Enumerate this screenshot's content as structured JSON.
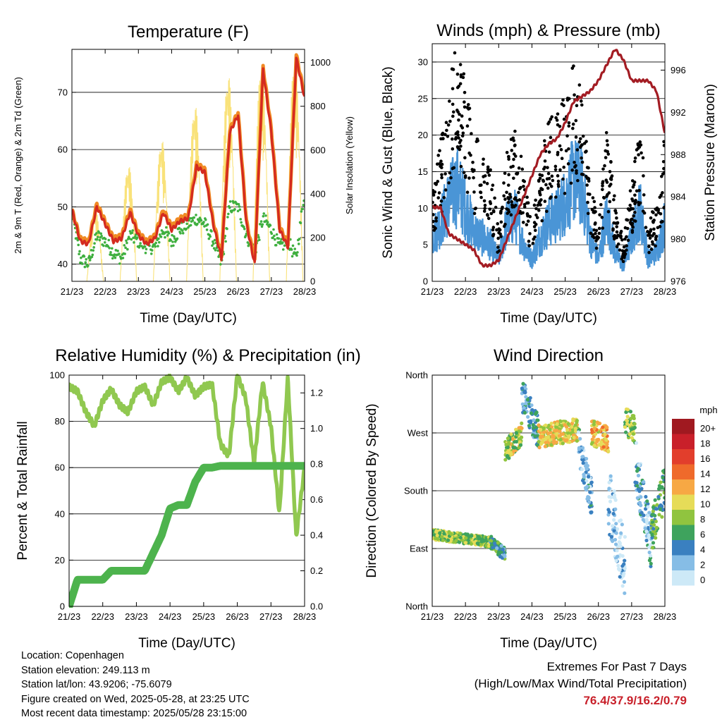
{
  "x_ticks": [
    "21/23",
    "22/23",
    "23/23",
    "24/23",
    "25/23",
    "26/23",
    "27/23",
    "28/23"
  ],
  "colors": {
    "red": "#d42a20",
    "orange": "#f08a24",
    "green": "#3faf3f",
    "yellow": "#f9e27a",
    "blue": "#4a95d6",
    "black": "#000000",
    "maroon": "#a31c23",
    "rh": "#90c850",
    "precip": "#4db34d",
    "extreme_values": "#c8202a"
  },
  "footer": {
    "location": "Location: Copenhagen",
    "elevation": "Station elevation: 249.113 m",
    "latlon": "Station lat/lon: 43.9206; -75.6079",
    "created": "Figure created on Wed, 2025-05-28, at 23:25 UTC",
    "latest": "Most recent data timestamp: 2025/05/28 23:15:00"
  },
  "extremes": {
    "line1": "Extremes For Past 7 Days",
    "line2": "(High/Low/Max Wind/Total Precipitation)",
    "values": "76.4/37.9/16.2/0.79"
  },
  "chart_data": [
    {
      "id": "temperature",
      "type": "line",
      "title": "Temperature (F)",
      "xlabel": "Time (Day/UTC)",
      "ylabel": "2m & 9m T (Red, Orange) & 2m Td (Green)",
      "ylabel_right": "Solar Insolation (Yellow)",
      "x": [
        0,
        0.25,
        0.5,
        0.75,
        1,
        1.25,
        1.5,
        1.75,
        2,
        2.25,
        2.5,
        2.75,
        3,
        3.25,
        3.5,
        3.75,
        4,
        4.25,
        4.5,
        4.75,
        5,
        5.25,
        5.5,
        5.75,
        6,
        6.25,
        6.5,
        6.75,
        7
      ],
      "ylim": [
        37,
        77.5
      ],
      "yticks": [
        40,
        50,
        60,
        70
      ],
      "y2lim": [
        0,
        1060
      ],
      "y2ticks": [
        0,
        200,
        400,
        600,
        800,
        1000
      ],
      "grid": true,
      "series": [
        {
          "name": "2m T",
          "color": "red",
          "axis": "left",
          "values": [
            49.5,
            44,
            43.5,
            50,
            47,
            44,
            44.5,
            49,
            45,
            43.5,
            44.5,
            49,
            46,
            47.5,
            48,
            57,
            56,
            47,
            41,
            63,
            66,
            47,
            40,
            74,
            63,
            46,
            43,
            76,
            69
          ]
        },
        {
          "name": "9m T",
          "color": "orange",
          "axis": "left",
          "values": [
            49.5,
            44.5,
            44,
            50.5,
            47.5,
            44.5,
            45,
            49.5,
            45.5,
            44,
            45,
            49.5,
            46.5,
            48,
            48.5,
            57.5,
            56.5,
            47.5,
            41.5,
            63.5,
            66.5,
            47.5,
            40.5,
            74.5,
            63.5,
            46.5,
            43.5,
            76.5,
            69.5
          ]
        },
        {
          "name": "2m Td",
          "color": "green",
          "axis": "left",
          "values": [
            49,
            41,
            40,
            45,
            44,
            42,
            41,
            45,
            44,
            43,
            43,
            46,
            44,
            46,
            47,
            48,
            47,
            44,
            40,
            50,
            50,
            45,
            42,
            48,
            46,
            43,
            44,
            41,
            53
          ]
        },
        {
          "name": "Solar",
          "color": "yellow",
          "axis": "right",
          "values": [
            0,
            0,
            0,
            330,
            0,
            0,
            0,
            540,
            0,
            0,
            0,
            660,
            0,
            0,
            0,
            820,
            0,
            0,
            0,
            960,
            0,
            0,
            0,
            1020,
            0,
            0,
            0,
            1040,
            0
          ]
        }
      ]
    },
    {
      "id": "winds",
      "type": "line",
      "title": "Winds (mph) & Pressure (mb)",
      "xlabel": "Time (Day/UTC)",
      "ylabel": "Sonic Wind & Gust (Blue, Black)",
      "ylabel_right": "Station Pressure (Maroon)",
      "x": [
        0,
        0.25,
        0.5,
        0.75,
        1,
        1.25,
        1.5,
        1.75,
        2,
        2.25,
        2.5,
        2.75,
        3,
        3.25,
        3.5,
        3.75,
        4,
        4.25,
        4.5,
        4.75,
        5,
        5.25,
        5.5,
        5.75,
        6,
        6.25,
        6.5,
        6.75,
        7
      ],
      "ylim": [
        0,
        32.5
      ],
      "yticks": [
        0,
        5,
        10,
        15,
        20,
        25,
        30
      ],
      "y2lim": [
        976,
        998.5
      ],
      "y2ticks": [
        976,
        980,
        984,
        988,
        992,
        996
      ],
      "grid": true,
      "series": [
        {
          "name": "Sonic Wind",
          "color": "blue",
          "axis": "left",
          "values": [
            6,
            8,
            11,
            13,
            10,
            7,
            6,
            5,
            3,
            8,
            9,
            5,
            3,
            6,
            8,
            9,
            11,
            14,
            13,
            6,
            3,
            9,
            4,
            2,
            6,
            10,
            3,
            4,
            8
          ]
        },
        {
          "name": "Gust",
          "color": "black",
          "axis": "left",
          "values": [
            9,
            14,
            19,
            25,
            20,
            15,
            13,
            12,
            5,
            13,
            16,
            11,
            6,
            12,
            16,
            17,
            19,
            22,
            20,
            11,
            5,
            16,
            8,
            4,
            10,
            16,
            6,
            8,
            15
          ]
        },
        {
          "name": "Pressure",
          "color": "maroon",
          "axis": "right",
          "values": [
            983,
            983,
            980.5,
            980,
            979.5,
            979,
            977.5,
            977.5,
            978,
            980,
            982,
            984,
            986,
            988,
            989,
            989.5,
            991,
            993,
            993.5,
            994,
            995,
            996.5,
            998,
            997,
            995,
            995,
            995,
            994,
            990
          ]
        }
      ]
    },
    {
      "id": "humidity",
      "type": "line",
      "title": "Relative Humidity (%) & Precipitation (in)",
      "xlabel": "Time (Day/UTC)",
      "ylabel": "Percent & Total Rainfall",
      "x": [
        0,
        0.25,
        0.5,
        0.75,
        1,
        1.25,
        1.5,
        1.75,
        2,
        2.25,
        2.5,
        2.75,
        3,
        3.25,
        3.5,
        3.75,
        4,
        4.25,
        4.5,
        4.75,
        5,
        5.25,
        5.5,
        5.75,
        6,
        6.25,
        6.5,
        6.75,
        7
      ],
      "ylim": [
        0,
        100
      ],
      "yticks": [
        0,
        20,
        40,
        60,
        80,
        100
      ],
      "y2lim": [
        0,
        1.3
      ],
      "y2ticks": [
        0.0,
        0.2,
        0.4,
        0.6,
        0.8,
        1.0,
        1.2
      ],
      "grid": true,
      "series": [
        {
          "name": "RH",
          "color": "rh",
          "axis": "left",
          "values": [
            95,
            93,
            84,
            78,
            89,
            94,
            87,
            84,
            93,
            95,
            87,
            97,
            99,
            93,
            99,
            91,
            95,
            96,
            70,
            65,
            100,
            90,
            62,
            97,
            78,
            40,
            99,
            30,
            60
          ]
        },
        {
          "name": "Total Precipitation",
          "color": "precip",
          "axis": "right",
          "values": [
            0.0,
            0.15,
            0.15,
            0.15,
            0.15,
            0.2,
            0.2,
            0.2,
            0.2,
            0.2,
            0.3,
            0.4,
            0.55,
            0.57,
            0.57,
            0.7,
            0.78,
            0.78,
            0.79,
            0.79,
            0.79,
            0.79,
            0.79,
            0.79,
            0.79,
            0.79,
            0.79,
            0.79,
            0.79
          ]
        }
      ]
    },
    {
      "id": "direction",
      "type": "scatter",
      "title": "Wind Direction",
      "xlabel": "Time (Day/UTC)",
      "ylabel": "Direction (Colored By Speed)",
      "ylim": [
        0,
        360
      ],
      "ytick_labels": [
        "North",
        "East",
        "South",
        "West",
        "North"
      ],
      "legend_title": "mph",
      "legend": [
        "20+",
        "18",
        "16",
        "14",
        "12",
        "10",
        "8",
        "6",
        "4",
        "2",
        "0"
      ],
      "legend_colors": [
        "#a01920",
        "#c9202a",
        "#e23e2c",
        "#ef6a2b",
        "#f7a844",
        "#e6dc58",
        "#90c43f",
        "#3ea35d",
        "#3a80c0",
        "#86bde6",
        "#cde9f7"
      ],
      "legend_placement": "right",
      "clusters": [
        {
          "x0": 0.0,
          "x1": 1.75,
          "dir0": 112,
          "dir1": 100,
          "spread": 8,
          "speed": 8
        },
        {
          "x0": 1.75,
          "x1": 2.2,
          "dir0": 100,
          "dir1": 80,
          "spread": 10,
          "speed": 5
        },
        {
          "x0": 2.2,
          "x1": 2.7,
          "dir0": 240,
          "dir1": 270,
          "spread": 18,
          "speed": 9
        },
        {
          "x0": 2.7,
          "x1": 3.2,
          "dir0": 330,
          "dir1": 270,
          "spread": 25,
          "speed": 4
        },
        {
          "x0": 3.2,
          "x1": 4.4,
          "dir0": 265,
          "dir1": 275,
          "spread": 18,
          "speed": 10
        },
        {
          "x0": 4.4,
          "x1": 4.8,
          "dir0": 250,
          "dir1": 170,
          "spread": 30,
          "speed": 3
        },
        {
          "x0": 4.8,
          "x1": 5.3,
          "dir0": 270,
          "dir1": 260,
          "spread": 20,
          "speed": 11
        },
        {
          "x0": 5.3,
          "x1": 5.8,
          "dir0": 170,
          "dir1": 60,
          "spread": 50,
          "speed": 1
        },
        {
          "x0": 5.8,
          "x1": 6.1,
          "dir0": 290,
          "dir1": 275,
          "spread": 22,
          "speed": 8
        },
        {
          "x0": 6.1,
          "x1": 6.6,
          "dir0": 230,
          "dir1": 90,
          "spread": 40,
          "speed": 3
        },
        {
          "x0": 6.6,
          "x1": 7.0,
          "dir0": 110,
          "dir1": 190,
          "spread": 35,
          "speed": 6
        }
      ]
    }
  ]
}
